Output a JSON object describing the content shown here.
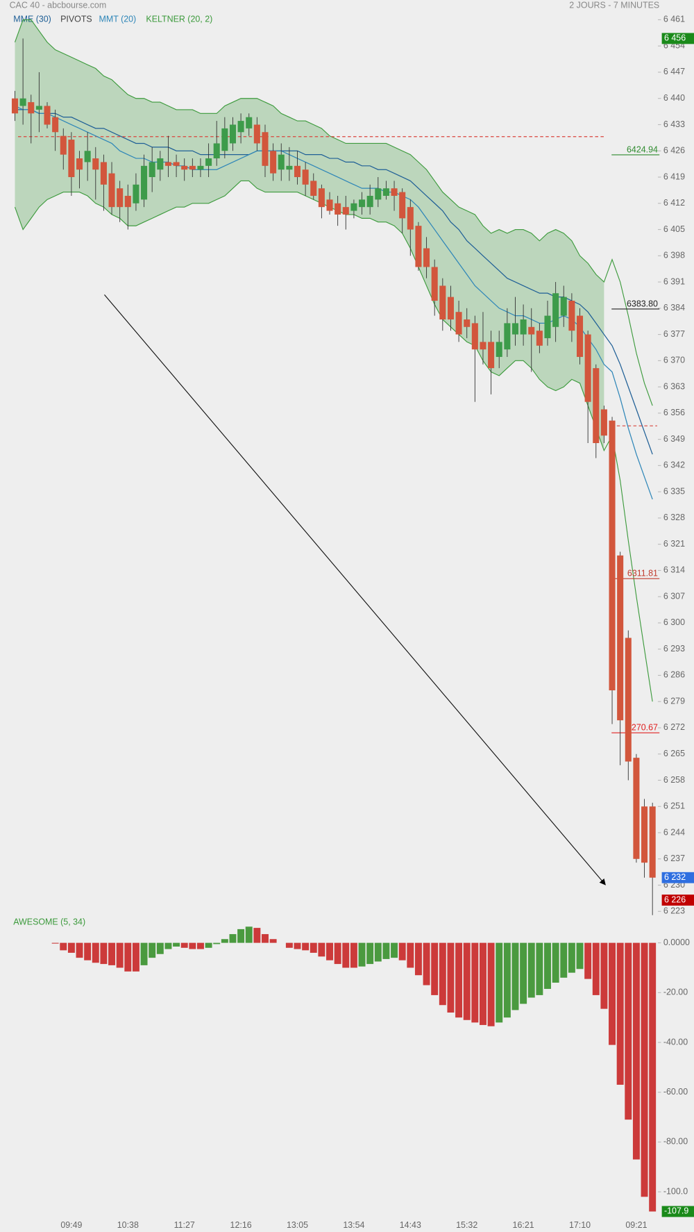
{
  "header": {
    "source": "CAC 40 - abcbourse.com",
    "period": "2 JOURS - 7 MINUTES"
  },
  "chart_data": [
    {
      "type": "candlestick",
      "ylim": [
        6221,
        6463
      ],
      "yticks": [
        {
          "value": 6461,
          "label": "6 461"
        },
        {
          "value": 6454,
          "label": "6 454"
        },
        {
          "value": 6447,
          "label": "6 447"
        },
        {
          "value": 6440,
          "label": "6 440"
        },
        {
          "value": 6433,
          "label": "6 433"
        },
        {
          "value": 6426,
          "label": "6 426"
        },
        {
          "value": 6419,
          "label": "6 419"
        },
        {
          "value": 6412,
          "label": "6 412"
        },
        {
          "value": 6405,
          "label": "6 405"
        },
        {
          "value": 6398,
          "label": "6 398"
        },
        {
          "value": 6391,
          "label": "6 391"
        },
        {
          "value": 6384,
          "label": "6 384"
        },
        {
          "value": 6377,
          "label": "6 377"
        },
        {
          "value": 6370,
          "label": "6 370"
        },
        {
          "value": 6363,
          "label": "6 363"
        },
        {
          "value": 6356,
          "label": "6 356"
        },
        {
          "value": 6349,
          "label": "6 349"
        },
        {
          "value": 6342,
          "label": "6 342"
        },
        {
          "value": 6335,
          "label": "6 335"
        },
        {
          "value": 6328,
          "label": "6 328"
        },
        {
          "value": 6321,
          "label": "6 321"
        },
        {
          "value": 6314,
          "label": "6 314"
        },
        {
          "value": 6307,
          "label": "6 307"
        },
        {
          "value": 6300,
          "label": "6 300"
        },
        {
          "value": 6293,
          "label": "6 293"
        },
        {
          "value": 6286,
          "label": "6 286"
        },
        {
          "value": 6279,
          "label": "6 279"
        },
        {
          "value": 6272,
          "label": "6 272"
        },
        {
          "value": 6265,
          "label": "6 265"
        },
        {
          "value": 6258,
          "label": "6 258"
        },
        {
          "value": 6251,
          "label": "6 251"
        },
        {
          "value": 6244,
          "label": "6 244"
        },
        {
          "value": 6237,
          "label": "6 237"
        },
        {
          "value": 6230,
          "label": "6 230"
        },
        {
          "value": 6223,
          "label": "6 223"
        }
      ],
      "up_color": "#3d9b4a",
      "down_color": "#d2563c",
      "open": [
        6440,
        6438,
        6439,
        6437,
        6438,
        6435,
        6430,
        6429,
        6424,
        6423,
        6424,
        6423,
        6420,
        6416,
        6414,
        6412,
        6413,
        6419,
        6421,
        6423,
        6423,
        6422,
        6422,
        6421,
        6422,
        6424,
        6426,
        6428,
        6431,
        6432,
        6433,
        6431,
        6426,
        6421,
        6421,
        6422,
        6421,
        6418,
        6416,
        6413,
        6412,
        6411,
        6410,
        6411,
        6411,
        6413,
        6414,
        6416,
        6415,
        6411,
        6406,
        6400,
        6395,
        6390,
        6387,
        6383,
        6381,
        6380,
        6375,
        6375,
        6371,
        6373,
        6377,
        6377,
        6379,
        6378,
        6376,
        6379,
        6382,
        6386,
        6382,
        6377,
        6368,
        6357,
        6354,
        6318,
        6296,
        6264,
        6251,
        6251
      ],
      "high": [
        6442,
        6456,
        6441,
        6447,
        6439,
        6437,
        6432,
        6431,
        6426,
        6431,
        6427,
        6425,
        6423,
        6418,
        6417,
        6420,
        6425,
        6427,
        6426,
        6430,
        6425,
        6424,
        6424,
        6424,
        6428,
        6434,
        6435,
        6435,
        6436,
        6436,
        6435,
        6433,
        6428,
        6428,
        6427,
        6426,
        6423,
        6420,
        6417,
        6415,
        6414,
        6414,
        6413,
        6415,
        6417,
        6419,
        6418,
        6418,
        6416,
        6413,
        6407,
        6403,
        6397,
        6392,
        6390,
        6386,
        6384,
        6382,
        6383,
        6378,
        6378,
        6384,
        6387,
        6385,
        6384,
        6380,
        6386,
        6391,
        6390,
        6388,
        6384,
        6378,
        6369,
        6358,
        6355,
        6319,
        6298,
        6265,
        6253,
        6252
      ],
      "low": [
        6434,
        6433,
        6428,
        6431,
        6432,
        6426,
        6421,
        6414,
        6416,
        6418,
        6413,
        6410,
        6409,
        6407,
        6405,
        6410,
        6411,
        6415,
        6418,
        6419,
        6419,
        6418,
        6419,
        6419,
        6419,
        6422,
        6424,
        6426,
        6428,
        6430,
        6426,
        6419,
        6418,
        6418,
        6418,
        6417,
        6414,
        6413,
        6408,
        6409,
        6406,
        6405,
        6408,
        6409,
        6409,
        6411,
        6413,
        6410,
        6404,
        6398,
        6394,
        6392,
        6382,
        6378,
        6378,
        6375,
        6376,
        6359,
        6369,
        6361,
        6368,
        6371,
        6374,
        6374,
        6367,
        6372,
        6374,
        6375,
        6379,
        6375,
        6369,
        6348,
        6344,
        6348,
        6273,
        6262,
        6258,
        6236,
        6232,
        6222
      ],
      "close": [
        6436,
        6440,
        6436,
        6438,
        6433,
        6431,
        6425,
        6419,
        6421,
        6426,
        6421,
        6417,
        6411,
        6411,
        6411,
        6417,
        6422,
        6423,
        6424,
        6422,
        6422,
        6421,
        6421,
        6422,
        6424,
        6428,
        6432,
        6433,
        6434,
        6435,
        6428,
        6422,
        6420,
        6425,
        6422,
        6419,
        6417,
        6414,
        6411,
        6410,
        6409,
        6409,
        6412,
        6413,
        6414,
        6416,
        6416,
        6414,
        6408,
        6405,
        6395,
        6395,
        6386,
        6381,
        6381,
        6377,
        6379,
        6373,
        6373,
        6368,
        6375,
        6380,
        6380,
        6381,
        6377,
        6374,
        6382,
        6388,
        6387,
        6378,
        6371,
        6359,
        6348,
        6350,
        6282,
        6274,
        6263,
        6237,
        6236,
        6232
      ],
      "series": [
        {
          "name": "MME (30)",
          "kind": "line",
          "color": "#1f5f96",
          "values": [
            6437,
            6437,
            6437,
            6436,
            6436,
            6436,
            6435,
            6435,
            6434,
            6433,
            6432,
            6432,
            6431,
            6430,
            6429,
            6428,
            6428,
            6427,
            6427,
            6427,
            6426,
            6426,
            6426,
            6425,
            6425,
            6425,
            6425,
            6425,
            6425,
            6425,
            6426,
            6426,
            6426,
            6426,
            6426,
            6426,
            6425,
            6425,
            6425,
            6424,
            6424,
            6423,
            6423,
            6422,
            6422,
            6421,
            6421,
            6420,
            6419,
            6418,
            6416,
            6414,
            6412,
            6410,
            6407,
            6405,
            6402,
            6400,
            6398,
            6396,
            6394,
            6392,
            6391,
            6390,
            6389,
            6388,
            6388,
            6387,
            6387,
            6386,
            6385,
            6383,
            6380,
            6377,
            6374,
            6369,
            6363,
            6357,
            6351,
            6345
          ]
        },
        {
          "name": "PIVOTS",
          "kind": "pivot",
          "color": "#444444",
          "line_color": "#d9443c",
          "values": [
            6429.8,
            6352.6
          ],
          "levels": [
            {
              "value": 6424.94,
              "label": "6424.94",
              "color": "#2e8b2e"
            },
            {
              "value": 6383.8,
              "label": "6383.80",
              "color": "#222222"
            },
            {
              "value": 6311.81,
              "label": "6311.81",
              "color": "#c0392b"
            },
            {
              "value": 6270.67,
              "label": "6270.67",
              "color": "#e02020"
            }
          ]
        },
        {
          "name": "MMT (20)",
          "kind": "line",
          "color": "#2e86b8",
          "values": [
            6438,
            6437,
            6437,
            6436,
            6436,
            6435,
            6434,
            6433,
            6432,
            6431,
            6430,
            6429,
            6428,
            6426,
            6425,
            6424,
            6424,
            6423,
            6423,
            6423,
            6422,
            6422,
            6421,
            6421,
            6421,
            6421,
            6422,
            6423,
            6424,
            6425,
            6426,
            6426,
            6426,
            6426,
            6425,
            6424,
            6423,
            6422,
            6421,
            6420,
            6419,
            6418,
            6417,
            6416,
            6416,
            6416,
            6415,
            6415,
            6414,
            6413,
            6411,
            6408,
            6405,
            6402,
            6399,
            6396,
            6393,
            6390,
            6388,
            6386,
            6384,
            6383,
            6382,
            6382,
            6381,
            6380,
            6380,
            6381,
            6382,
            6381,
            6379,
            6376,
            6373,
            6369,
            6367,
            6360,
            6352,
            6345,
            6339,
            6333
          ]
        },
        {
          "name": "KELTNER (20, 2)",
          "kind": "band",
          "color": "#3c9a3c",
          "upper": [
            6455,
            6461,
            6461,
            6458,
            6455,
            6453,
            6452,
            6451,
            6450,
            6449,
            6448,
            6446,
            6445,
            6443,
            6441,
            6440,
            6440,
            6439,
            6439,
            6438,
            6437,
            6437,
            6437,
            6436,
            6436,
            6436,
            6438,
            6439,
            6440,
            6440,
            6440,
            6439,
            6438,
            6436,
            6435,
            6434,
            6434,
            6433,
            6432,
            6430,
            6429,
            6428,
            6428,
            6428,
            6428,
            6428,
            6428,
            6427,
            6426,
            6425,
            6423,
            6421,
            6418,
            6415,
            6413,
            6411,
            6410,
            6409,
            6406,
            6404,
            6405,
            6404,
            6405,
            6405,
            6404,
            6402,
            6404,
            6405,
            6404,
            6402,
            6398,
            6396,
            6393,
            6391,
            6397,
            6391,
            6382,
            6372,
            6364,
            6358
          ],
          "lower": [
            6411,
            6405,
            6408,
            6411,
            6413,
            6414,
            6415,
            6415,
            6415,
            6414,
            6412,
            6411,
            6409,
            6408,
            6406,
            6406,
            6407,
            6408,
            6409,
            6410,
            6411,
            6411,
            6412,
            6412,
            6412,
            6413,
            6414,
            6416,
            6418,
            6418,
            6416,
            6415,
            6415,
            6415,
            6415,
            6415,
            6414,
            6413,
            6412,
            6411,
            6410,
            6409,
            6409,
            6408,
            6408,
            6407,
            6407,
            6406,
            6404,
            6400,
            6395,
            6390,
            6385,
            6381,
            6379,
            6377,
            6375,
            6374,
            6370,
            6367,
            6366,
            6368,
            6370,
            6370,
            6368,
            6365,
            6363,
            6362,
            6363,
            6365,
            6364,
            6358,
            6352,
            6346,
            6350,
            6338,
            6322,
            6307,
            6293,
            6279
          ]
        }
      ],
      "price_tags": [
        {
          "value": 6456,
          "label": "6 456",
          "color": "#1a8a1a"
        },
        {
          "value": 6232,
          "label": "6 232",
          "color": "#2f6fe0"
        },
        {
          "value": 6226,
          "label": "6 226",
          "color": "#c00000"
        }
      ]
    },
    {
      "type": "bar",
      "title": "AWESOME (5, 34)",
      "ylim": [
        -112,
        9
      ],
      "yticks": [
        {
          "value": 0,
          "label": "0.0000"
        },
        {
          "value": -20,
          "label": "-20.00"
        },
        {
          "value": -40,
          "label": "-40.00"
        },
        {
          "value": -60,
          "label": "-60.00"
        },
        {
          "value": -80,
          "label": "-80.00"
        },
        {
          "value": -100,
          "label": "-100.0"
        }
      ],
      "up_color": "#4a9a3f",
      "down_color": "#cc3a3a",
      "last_color": "#1a8a1a",
      "categories": [
        null,
        null,
        null,
        null,
        null,
        null,
        null,
        "09:49",
        null,
        null,
        null,
        null,
        null,
        null,
        "10:38",
        null,
        null,
        null,
        null,
        null,
        null,
        "11:27",
        null,
        null,
        null,
        null,
        null,
        null,
        "12:16",
        null,
        null,
        null,
        null,
        null,
        null,
        "13:05",
        null,
        null,
        null,
        null,
        null,
        null,
        "13:54",
        null,
        null,
        null,
        null,
        null,
        null,
        "14:43",
        null,
        null,
        null,
        null,
        null,
        null,
        "15:32",
        null,
        null,
        null,
        null,
        null,
        null,
        "16:21",
        null,
        null,
        null,
        null,
        null,
        null,
        "17:10",
        null,
        null,
        null,
        null,
        null,
        null,
        "09:21",
        null,
        null
      ],
      "values": [
        null,
        null,
        null,
        null,
        null,
        -0.3,
        -3,
        -4,
        -6,
        -7,
        -8,
        -8.5,
        -9,
        -10,
        -11.5,
        -11.5,
        -9,
        -6,
        -4.5,
        -2.5,
        -1.5,
        -2,
        -2.5,
        -2.5,
        -2,
        -0.5,
        1.5,
        3.5,
        5.5,
        6.5,
        6,
        3.5,
        1.5,
        0,
        -2,
        -2.5,
        -3,
        -4,
        -5.5,
        -7,
        -8.5,
        -10,
        -10,
        -9.5,
        -8.5,
        -7.5,
        -6.5,
        -6,
        -7,
        -10,
        -13,
        -17,
        -21,
        -25,
        -28,
        -30,
        -31,
        -32,
        -33,
        -33.5,
        -32,
        -30,
        -27,
        -24.5,
        -22,
        -21,
        -18.5,
        -16,
        -14,
        -12,
        -10.5,
        -14.5,
        -21,
        -26.5,
        -41,
        -57,
        -71,
        -87,
        -102,
        -107.9
      ]
    }
  ]
}
